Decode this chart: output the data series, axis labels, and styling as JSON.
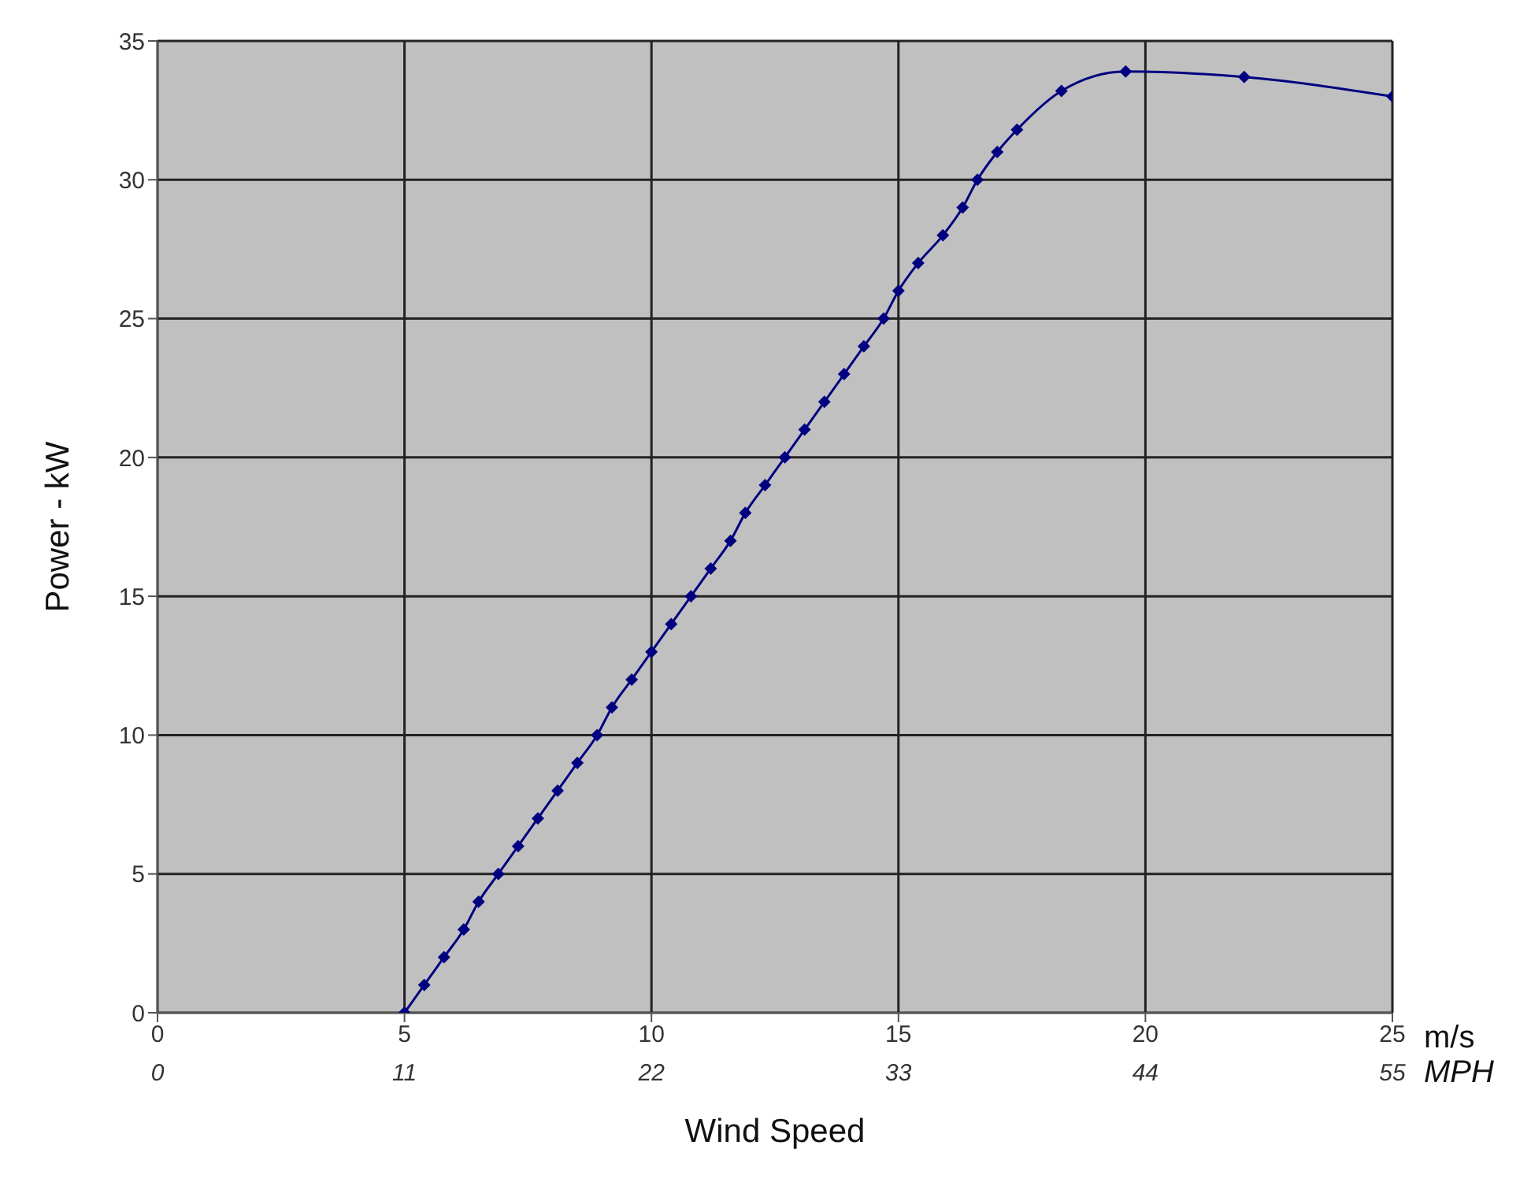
{
  "chart_data": {
    "type": "line",
    "xlabel": "Wind Speed",
    "ylabel": "Power - kW",
    "x2label": "MPH",
    "annotations": [
      "m/s"
    ],
    "series": [
      {
        "color": "#000080",
        "x": [
          5.0,
          5.4,
          5.8,
          6.2,
          6.5,
          6.9,
          7.3,
          7.7,
          8.1,
          8.5,
          8.9,
          9.2,
          9.6,
          10.0,
          10.4,
          10.8,
          11.2,
          11.6,
          11.9,
          12.3,
          12.7,
          13.1,
          13.5,
          13.9,
          14.3,
          14.7,
          15.0,
          15.4,
          15.9,
          16.3,
          16.6,
          17.0,
          17.4,
          18.3,
          19.6,
          22.0,
          25.0
        ],
        "values": [
          0,
          1,
          2,
          3,
          4,
          5,
          6,
          7,
          8,
          9,
          10,
          11,
          12,
          13,
          14,
          15,
          16,
          17,
          18,
          19,
          20,
          21,
          22,
          23,
          24,
          25,
          26,
          27,
          28,
          29,
          30,
          31,
          31.8,
          33.2,
          33.9,
          33.7,
          33.0
        ]
      }
    ],
    "xlim": [
      0,
      25
    ],
    "xticks": [
      0,
      5,
      10,
      15,
      20,
      25
    ],
    "x2lim": [
      0,
      55
    ],
    "x2ticks": [
      0,
      11,
      22,
      33,
      44,
      55
    ],
    "ylim": [
      0,
      35
    ],
    "yticks": [
      0,
      5,
      10,
      15,
      20,
      25,
      30,
      35
    ],
    "grid": true,
    "marker": "diamond",
    "line_style": "solid"
  }
}
